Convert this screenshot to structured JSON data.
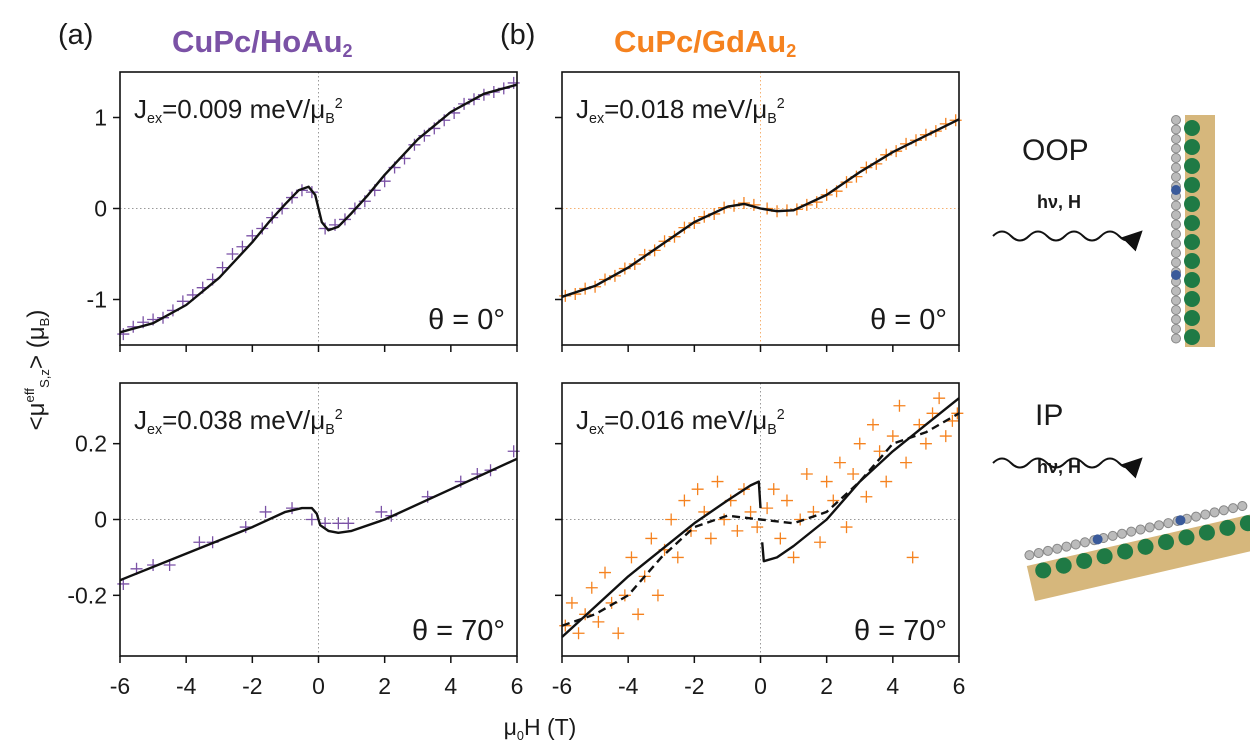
{
  "y_label_parts": [
    "<μ",
    "eff",
    "S,z",
    "> (μ",
    "B",
    ")"
  ],
  "x_label_parts": [
    "μ",
    "0",
    "H (T)"
  ],
  "illustrations": [
    {
      "label": "OOP",
      "beam": "hν, H"
    },
    {
      "label": "IP",
      "beam": "hν, H"
    }
  ],
  "chart_data": [
    {
      "type": "scatter",
      "panel_label": "(a)",
      "title": "CuPc/HoAu",
      "title_sub": "2",
      "title_color": "#7b52a6",
      "annotation_parts": [
        "J",
        "ex",
        "=0.009 meV/μ",
        "B",
        "2"
      ],
      "angle_label": "θ = 0°",
      "xlim": [
        -6,
        6
      ],
      "ylim": [
        -1.5,
        1.5
      ],
      "xticks": [
        -6,
        -4,
        -2,
        0,
        2,
        4,
        6
      ],
      "yticks": [
        -1,
        0,
        1
      ],
      "xtick_labels": false,
      "ytick_labels": true,
      "zero_line_color": "#999999",
      "points": {
        "color": "#7b52a6",
        "x": [
          -5.9,
          -5.6,
          -5.3,
          -5.0,
          -4.7,
          -4.4,
          -4.1,
          -3.8,
          -3.5,
          -3.2,
          -2.9,
          -2.6,
          -2.3,
          -2.0,
          -1.7,
          -1.4,
          -1.1,
          -0.8,
          -0.5,
          -0.2,
          0.2,
          0.5,
          0.8,
          1.1,
          1.4,
          1.7,
          2.0,
          2.3,
          2.6,
          2.9,
          3.2,
          3.5,
          3.8,
          4.1,
          4.4,
          4.7,
          5.0,
          5.3,
          5.6,
          5.9
        ],
        "y": [
          -1.38,
          -1.3,
          -1.25,
          -1.22,
          -1.2,
          -1.12,
          -1.02,
          -0.95,
          -0.87,
          -0.78,
          -0.65,
          -0.5,
          -0.42,
          -0.3,
          -0.22,
          -0.1,
          0.0,
          0.12,
          0.2,
          0.18,
          -0.22,
          -0.18,
          -0.12,
          0.0,
          0.08,
          0.2,
          0.3,
          0.45,
          0.55,
          0.7,
          0.8,
          0.88,
          0.97,
          1.05,
          1.15,
          1.2,
          1.25,
          1.28,
          1.32,
          1.38
        ]
      },
      "fits": [
        {
          "dash": false,
          "color": "#111111",
          "x": [
            -6,
            -5,
            -4,
            -3,
            -2,
            -1.5,
            -1,
            -0.6,
            -0.3,
            -0.1,
            0.1,
            0.3,
            0.6,
            1,
            1.5,
            2,
            3,
            4,
            5,
            6
          ],
          "y": [
            -1.36,
            -1.26,
            -1.06,
            -0.76,
            -0.37,
            -0.15,
            0.05,
            0.2,
            0.24,
            0.15,
            -0.15,
            -0.24,
            -0.2,
            -0.05,
            0.15,
            0.37,
            0.76,
            1.06,
            1.26,
            1.36
          ]
        }
      ]
    },
    {
      "type": "scatter",
      "panel_label": "(b)",
      "title": "CuPc/GdAu",
      "title_sub": "2",
      "title_color": "#f5821f",
      "annotation_parts": [
        "J",
        "ex",
        "=0.018 meV/μ",
        "B",
        "2"
      ],
      "angle_label": "θ = 0°",
      "xlim": [
        -6,
        6
      ],
      "ylim": [
        -1.5,
        1.5
      ],
      "xticks": [
        -6,
        -4,
        -2,
        0,
        2,
        4,
        6
      ],
      "yticks": [
        -1,
        0,
        1
      ],
      "xtick_labels": false,
      "ytick_labels": false,
      "zero_line_color": "#f5b070",
      "points": {
        "color": "#f5821f",
        "x": [
          -5.9,
          -5.6,
          -5.3,
          -5.0,
          -4.7,
          -4.4,
          -4.1,
          -3.8,
          -3.5,
          -3.2,
          -2.9,
          -2.6,
          -2.3,
          -2.0,
          -1.7,
          -1.4,
          -1.1,
          -0.8,
          -0.5,
          -0.2,
          0.2,
          0.5,
          0.8,
          1.1,
          1.4,
          1.7,
          2.0,
          2.3,
          2.6,
          2.9,
          3.2,
          3.5,
          3.8,
          4.1,
          4.4,
          4.7,
          5.0,
          5.3,
          5.6,
          5.9
        ],
        "y": [
          -0.96,
          -0.94,
          -0.88,
          -0.86,
          -0.78,
          -0.74,
          -0.66,
          -0.61,
          -0.51,
          -0.46,
          -0.36,
          -0.31,
          -0.21,
          -0.16,
          -0.09,
          -0.06,
          0.01,
          0.03,
          0.06,
          0.04,
          0.0,
          -0.03,
          -0.02,
          -0.01,
          0.04,
          0.07,
          0.15,
          0.19,
          0.29,
          0.35,
          0.45,
          0.49,
          0.59,
          0.63,
          0.71,
          0.75,
          0.81,
          0.85,
          0.93,
          0.97
        ]
      },
      "fits": [
        {
          "dash": false,
          "color": "#111111",
          "x": [
            -6,
            -5,
            -4,
            -3,
            -2,
            -1,
            -0.5,
            0,
            0.5,
            1,
            2,
            3,
            4,
            5,
            6
          ],
          "y": [
            -0.97,
            -0.85,
            -0.65,
            -0.4,
            -0.15,
            0.02,
            0.05,
            0.0,
            -0.03,
            -0.02,
            0.15,
            0.4,
            0.62,
            0.8,
            0.98
          ]
        }
      ]
    },
    {
      "type": "scatter",
      "annotation_parts": [
        "J",
        "ex",
        "=0.038 meV/μ",
        "B",
        "2"
      ],
      "angle_label": "θ = 70°",
      "xlim": [
        -6,
        6
      ],
      "ylim": [
        -0.36,
        0.36
      ],
      "xticks": [
        -6,
        -4,
        -2,
        0,
        2,
        4,
        6
      ],
      "yticks": [
        -0.2,
        0,
        0.2
      ],
      "xtick_labels": true,
      "ytick_labels": true,
      "zero_line_color": "#999999",
      "points": {
        "color": "#7b52a6",
        "x": [
          -5.9,
          -5.5,
          -5.0,
          -4.5,
          -3.6,
          -3.2,
          -2.2,
          -1.6,
          -0.8,
          -0.2,
          0.2,
          0.6,
          0.9,
          1.9,
          2.2,
          3.3,
          4.3,
          4.8,
          5.2,
          5.9
        ],
        "y": [
          -0.17,
          -0.13,
          -0.12,
          -0.12,
          -0.06,
          -0.06,
          -0.02,
          0.02,
          0.03,
          0.0,
          -0.01,
          -0.01,
          -0.01,
          0.02,
          0.01,
          0.06,
          0.1,
          0.12,
          0.13,
          0.18
        ]
      },
      "fits": [
        {
          "dash": false,
          "color": "#111111",
          "x": [
            -6,
            -4,
            -2,
            -1,
            -0.5,
            -0.2,
            -0.05,
            0.05,
            0.3,
            0.6,
            1,
            2,
            4,
            6
          ],
          "y": [
            -0.16,
            -0.09,
            -0.02,
            0.02,
            0.03,
            0.03,
            0.015,
            -0.015,
            -0.03,
            -0.035,
            -0.03,
            0.0,
            0.08,
            0.16
          ]
        }
      ]
    },
    {
      "type": "scatter",
      "annotation_parts": [
        "J",
        "ex",
        "=0.016 meV/μ",
        "B",
        "2"
      ],
      "angle_label": "θ = 70°",
      "xlim": [
        -6,
        6
      ],
      "ylim": [
        -0.36,
        0.36
      ],
      "xticks": [
        -6,
        -4,
        -2,
        0,
        2,
        4,
        6
      ],
      "yticks": [
        -0.2,
        0,
        0.2
      ],
      "xtick_labels": true,
      "ytick_labels": false,
      "zero_line_color": "#999999",
      "points": {
        "color": "#f5821f",
        "x": [
          -5.9,
          -5.7,
          -5.5,
          -5.3,
          -5.1,
          -4.9,
          -4.7,
          -4.5,
          -4.3,
          -4.1,
          -3.9,
          -3.7,
          -3.5,
          -3.3,
          -3.1,
          -2.9,
          -2.7,
          -2.5,
          -2.3,
          -2.1,
          -1.9,
          -1.7,
          -1.5,
          -1.3,
          -1.1,
          -0.9,
          -0.7,
          -0.5,
          -0.3,
          -0.1,
          0.2,
          0.4,
          0.6,
          0.8,
          1.0,
          1.2,
          1.4,
          1.6,
          1.8,
          2.0,
          2.2,
          2.4,
          2.6,
          2.8,
          3.0,
          3.2,
          3.4,
          3.6,
          3.8,
          4.0,
          4.2,
          4.4,
          4.6,
          4.8,
          5.0,
          5.2,
          5.4,
          5.6,
          5.8,
          5.95
        ],
        "y": [
          -0.28,
          -0.22,
          -0.3,
          -0.25,
          -0.18,
          -0.27,
          -0.14,
          -0.22,
          -0.3,
          -0.2,
          -0.1,
          -0.25,
          -0.15,
          -0.05,
          -0.2,
          -0.08,
          0.0,
          -0.1,
          0.05,
          -0.03,
          0.08,
          0.02,
          -0.05,
          0.1,
          0.0,
          0.05,
          -0.03,
          0.08,
          0.02,
          -0.02,
          0.03,
          0.08,
          -0.05,
          0.05,
          -0.1,
          0.0,
          0.12,
          0.02,
          -0.06,
          0.1,
          0.05,
          0.15,
          -0.02,
          0.12,
          0.2,
          0.06,
          0.25,
          0.18,
          0.1,
          0.22,
          0.3,
          0.15,
          -0.1,
          0.25,
          0.2,
          0.28,
          0.32,
          0.22,
          0.26,
          0.28
        ]
      },
      "fits": [
        {
          "dash": false,
          "color": "#111111",
          "x": [
            -6,
            -5,
            -4,
            -3,
            -2,
            -1,
            -0.3,
            -0.05,
            0,
            null,
            0.05,
            0.1,
            0.5,
            1,
            2,
            3,
            4,
            5,
            6
          ],
          "y": [
            -0.31,
            -0.23,
            -0.15,
            -0.08,
            -0.01,
            0.05,
            0.09,
            0.1,
            0.03,
            null,
            -0.06,
            -0.11,
            -0.1,
            -0.07,
            0.0,
            0.1,
            0.18,
            0.25,
            0.32
          ]
        },
        {
          "dash": true,
          "color": "#111111",
          "x": [
            -6,
            -5,
            -4,
            -3,
            -2,
            -1,
            0,
            1,
            2,
            3,
            4,
            5,
            6
          ],
          "y": [
            -0.28,
            -0.25,
            -0.2,
            -0.1,
            -0.02,
            0.01,
            0.0,
            -0.01,
            0.02,
            0.1,
            0.2,
            0.23,
            0.28
          ]
        }
      ]
    }
  ]
}
